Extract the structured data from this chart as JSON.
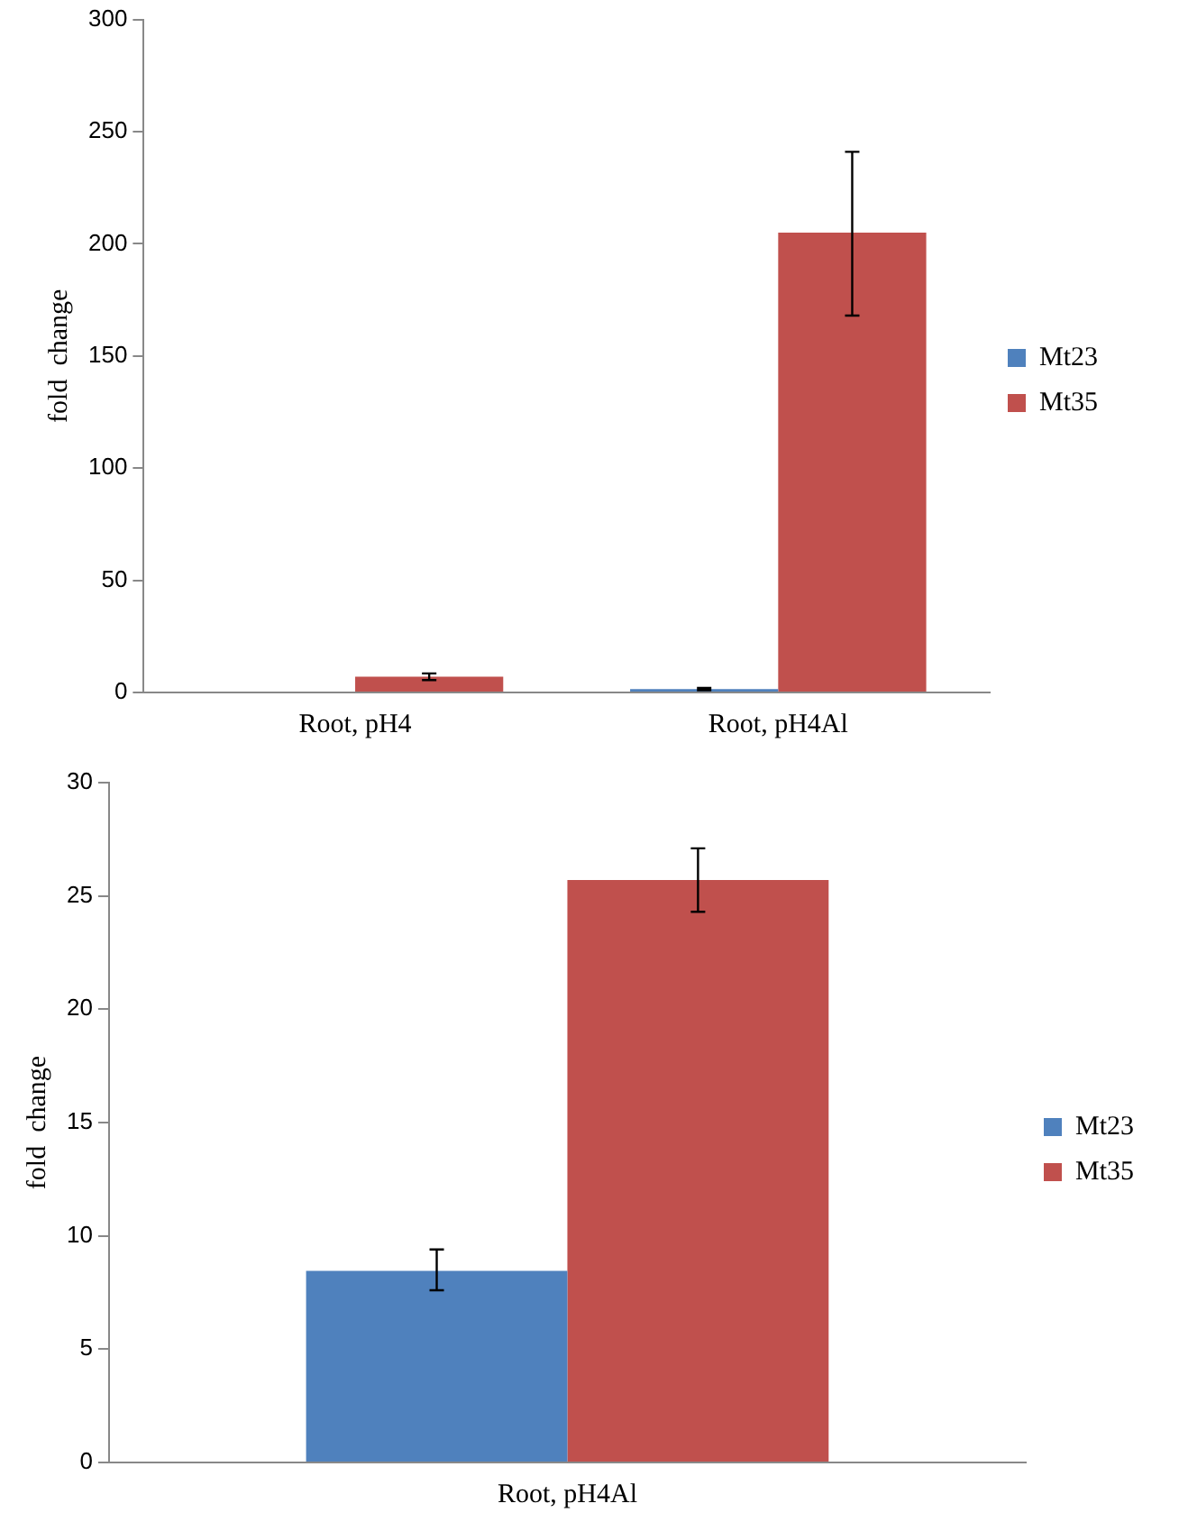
{
  "chart_data": [
    {
      "type": "bar",
      "ylabel": "fold  change",
      "categories": [
        "Root, pH4",
        "Root, pH4Al"
      ],
      "ylim": [
        0,
        300
      ],
      "yticks": [
        0,
        50,
        100,
        150,
        200,
        250,
        300
      ],
      "grid": false,
      "legend": "right",
      "series": [
        {
          "name": "Mt23",
          "color": "#4f81bd",
          "values": [
            0,
            1.5
          ],
          "errors": [
            null,
            0.5
          ]
        },
        {
          "name": "Mt35",
          "color": "#c0504d",
          "values": [
            7,
            205
          ],
          "errors": [
            1.5,
            [
              168,
              241
            ]
          ]
        }
      ]
    },
    {
      "type": "bar",
      "ylabel": "fold  change",
      "categories": [
        "Root, pH4Al"
      ],
      "ylim": [
        0,
        30
      ],
      "yticks": [
        0,
        5,
        10,
        15,
        20,
        25,
        30
      ],
      "grid": false,
      "legend": "right",
      "series": [
        {
          "name": "Mt23",
          "color": "#4f81bd",
          "values": [
            8.45
          ],
          "errors": [
            [
              7.6,
              9.4
            ]
          ]
        },
        {
          "name": "Mt35",
          "color": "#c0504d",
          "values": [
            25.7
          ],
          "errors": [
            [
              24.3,
              27.1
            ]
          ]
        }
      ]
    }
  ]
}
